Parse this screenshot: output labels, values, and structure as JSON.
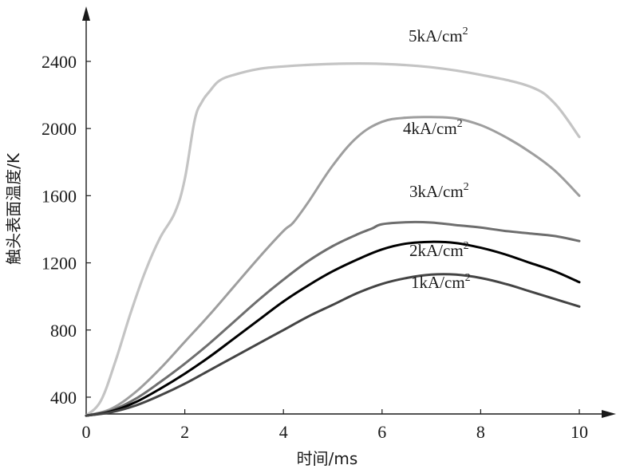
{
  "chart_data": {
    "type": "line",
    "xlabel": "时间/ms",
    "ylabel": "触头表面温度/K",
    "xlim": [
      0,
      10.4
    ],
    "ylim": [
      300,
      2600
    ],
    "x_ticks": [
      "0",
      "2",
      "4",
      "6",
      "8",
      "10"
    ],
    "y_ticks": [
      "400",
      "800",
      "1200",
      "1600",
      "2000",
      "2400"
    ],
    "grid": false,
    "legend": "inline labels near curves",
    "series": [
      {
        "name": "5kA/cm²",
        "label_main": "5kA/cm",
        "label_sup": "2",
        "color": "#c4c4c4",
        "x": [
          0,
          0.3,
          0.6,
          0.9,
          1.2,
          1.5,
          1.8,
          2.0,
          2.2,
          2.35,
          2.5,
          2.7,
          3.0,
          3.5,
          4.0,
          5.0,
          6.0,
          7.0,
          8.0,
          9.0,
          9.5,
          10.0
        ],
        "y": [
          290,
          380,
          620,
          900,
          1150,
          1350,
          1500,
          1700,
          2050,
          2160,
          2220,
          2285,
          2320,
          2355,
          2370,
          2385,
          2385,
          2365,
          2320,
          2250,
          2150,
          1950
        ]
      },
      {
        "name": "4kA/cm²",
        "label_main": "4kA/cm",
        "label_sup": "2",
        "color": "#9e9e9e",
        "x": [
          0,
          0.5,
          1.0,
          1.5,
          2.0,
          2.5,
          3.0,
          3.5,
          4.0,
          4.2,
          4.5,
          5.0,
          5.5,
          6.0,
          6.5,
          7.0,
          7.5,
          8.0,
          8.5,
          9.0,
          9.5,
          10.0
        ],
        "y": [
          290,
          330,
          430,
          570,
          730,
          890,
          1060,
          1230,
          1390,
          1440,
          1560,
          1780,
          1950,
          2040,
          2065,
          2068,
          2060,
          2020,
          1950,
          1860,
          1750,
          1600
        ]
      },
      {
        "name": "3kA/cm²",
        "label_main": "3kA/cm",
        "label_sup": "2",
        "color": "#6e6e6e",
        "x": [
          0,
          0.5,
          1.0,
          1.5,
          2.0,
          2.5,
          3.0,
          3.5,
          4.0,
          4.5,
          5.0,
          5.5,
          5.8,
          6.0,
          6.5,
          7.0,
          7.5,
          8.0,
          8.5,
          9.0,
          9.5,
          10.0
        ],
        "y": [
          290,
          320,
          390,
          490,
          600,
          720,
          850,
          980,
          1100,
          1210,
          1300,
          1370,
          1405,
          1430,
          1442,
          1440,
          1425,
          1410,
          1390,
          1375,
          1360,
          1330
        ]
      },
      {
        "name": "2kA/cm²",
        "label_main": "2kA/cm",
        "label_sup": "2",
        "color": "#000000",
        "x": [
          0,
          0.5,
          1.0,
          1.5,
          2.0,
          2.5,
          3.0,
          3.5,
          4.0,
          4.5,
          5.0,
          5.5,
          6.0,
          6.5,
          7.0,
          7.5,
          8.0,
          8.5,
          9.0,
          9.5,
          10.0
        ],
        "y": [
          290,
          315,
          370,
          450,
          540,
          640,
          750,
          860,
          970,
          1065,
          1150,
          1220,
          1280,
          1315,
          1325,
          1318,
          1290,
          1250,
          1200,
          1150,
          1085
        ]
      },
      {
        "name": "1kA/cm²",
        "label_main": "1kA/cm",
        "label_sup": "2",
        "color": "#444444",
        "x": [
          0,
          0.5,
          1.0,
          1.5,
          2.0,
          2.5,
          3.0,
          3.5,
          4.0,
          4.5,
          5.0,
          5.5,
          6.0,
          6.5,
          7.0,
          7.5,
          8.0,
          8.5,
          9.0,
          9.5,
          10.0
        ],
        "y": [
          290,
          310,
          350,
          410,
          480,
          560,
          640,
          720,
          800,
          880,
          950,
          1020,
          1075,
          1110,
          1130,
          1130,
          1110,
          1075,
          1030,
          985,
          940
        ]
      }
    ]
  }
}
